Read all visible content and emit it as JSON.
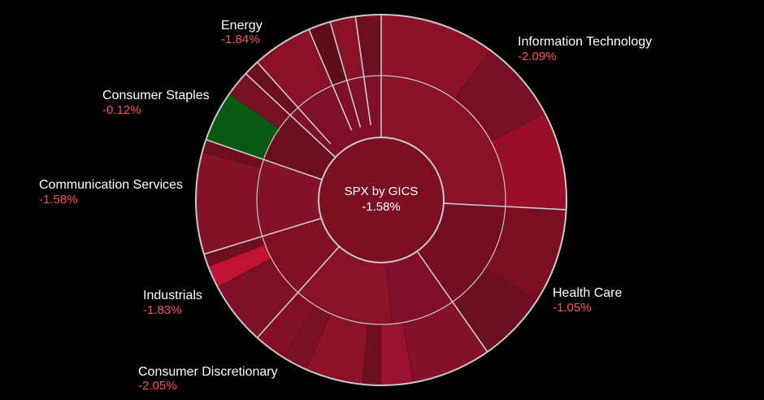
{
  "chart_data": {
    "type": "sunburst",
    "center": {
      "title": "SPX by GICS",
      "value": "-1.58%"
    },
    "colors": {
      "background": "#000000",
      "label_text": "#ffffff",
      "change_text": "#ff4d5e",
      "divider": "#c8c8c8",
      "positive": "#0b5a14"
    },
    "sectors": [
      {
        "name": "Information Technology",
        "change": "-2.09%",
        "change_value": -2.09,
        "start_deg": 0,
        "end_deg": 93,
        "label_pos": "top-right",
        "industries": [
          {
            "start_deg": 0,
            "end_deg": 93,
            "color": "#8a1226"
          }
        ],
        "stocks": [
          {
            "start_deg": 0,
            "end_deg": 36,
            "color": "#8e1128"
          },
          {
            "start_deg": 36,
            "end_deg": 62,
            "color": "#761022"
          },
          {
            "start_deg": 62,
            "end_deg": 93,
            "color": "#9a0f28"
          }
        ]
      },
      {
        "name": "Health Care",
        "change": "-1.05%",
        "change_value": -1.05,
        "start_deg": 93,
        "end_deg": 145,
        "label_pos": "right",
        "industries": [
          {
            "start_deg": 93,
            "end_deg": 145,
            "color": "#740f22"
          }
        ],
        "stocks": [
          {
            "start_deg": 93,
            "end_deg": 123,
            "color": "#7a0f22"
          },
          {
            "start_deg": 123,
            "end_deg": 145,
            "color": "#6c0f1f"
          }
        ]
      },
      {
        "name": "Consumer Discretionary",
        "change": "-2.05%",
        "change_value": -2.05,
        "start_deg": 145,
        "end_deg": 222,
        "label_pos": "bottom",
        "industries": [
          {
            "start_deg": 145,
            "end_deg": 175,
            "color": "#80102a"
          },
          {
            "start_deg": 175,
            "end_deg": 222,
            "color": "#8a1228"
          }
        ],
        "stocks": [
          {
            "start_deg": 145,
            "end_deg": 170,
            "color": "#86112a"
          },
          {
            "start_deg": 170,
            "end_deg": 180,
            "color": "#9a1230"
          },
          {
            "start_deg": 180,
            "end_deg": 186,
            "color": "#6e0f20"
          },
          {
            "start_deg": 186,
            "end_deg": 204,
            "color": "#8c1228"
          },
          {
            "start_deg": 204,
            "end_deg": 212,
            "color": "#7a1024"
          },
          {
            "start_deg": 212,
            "end_deg": 222,
            "color": "#831026"
          }
        ]
      },
      {
        "name": "Industrials",
        "change": "-1.83%",
        "change_value": -1.83,
        "start_deg": 222,
        "end_deg": 253,
        "label_pos": "left-bottom",
        "industries": [
          {
            "start_deg": 222,
            "end_deg": 253,
            "color": "#821024"
          }
        ],
        "stocks": [
          {
            "start_deg": 222,
            "end_deg": 242,
            "color": "#7c1024"
          },
          {
            "start_deg": 242,
            "end_deg": 249,
            "color": "#c01432"
          },
          {
            "start_deg": 249,
            "end_deg": 253,
            "color": "#6e0f21"
          }
        ]
      },
      {
        "name": "Communication Services",
        "change": "-1.58%",
        "change_value": -1.58,
        "start_deg": 253,
        "end_deg": 289,
        "label_pos": "left",
        "industries": [
          {
            "start_deg": 253,
            "end_deg": 289,
            "color": "#86122a"
          }
        ],
        "stocks": [
          {
            "start_deg": 253,
            "end_deg": 285,
            "color": "#861228"
          },
          {
            "start_deg": 285,
            "end_deg": 289,
            "color": "#6e0f20"
          }
        ]
      },
      {
        "name": "Consumer Staples",
        "change": "-0.12%",
        "change_value": -0.12,
        "start_deg": 289,
        "end_deg": 313,
        "label_pos": "left-top",
        "industries": [
          {
            "start_deg": 289,
            "end_deg": 313,
            "color": "#6b0f1f"
          }
        ],
        "stocks": [
          {
            "start_deg": 289,
            "end_deg": 305,
            "color": "#0b5a14"
          },
          {
            "start_deg": 305,
            "end_deg": 313,
            "color": "#7a1024"
          }
        ]
      },
      {
        "name": "Energy",
        "change": "-1.84%",
        "change_value": -1.84,
        "start_deg": 313,
        "end_deg": 360,
        "label_pos": "top",
        "industries": [
          {
            "start_deg": 313,
            "end_deg": 360,
            "color": "#80102a"
          }
        ],
        "stocks": [
          {
            "start_deg": 313,
            "end_deg": 318,
            "color": "#6b0f1f"
          },
          {
            "start_deg": 318,
            "end_deg": 337,
            "color": "#8a1128"
          },
          {
            "start_deg": 337,
            "end_deg": 344,
            "color": "#5e0c1a"
          },
          {
            "start_deg": 344,
            "end_deg": 352,
            "color": "#8a1128"
          },
          {
            "start_deg": 352,
            "end_deg": 360,
            "color": "#6e0f21"
          }
        ]
      }
    ]
  }
}
